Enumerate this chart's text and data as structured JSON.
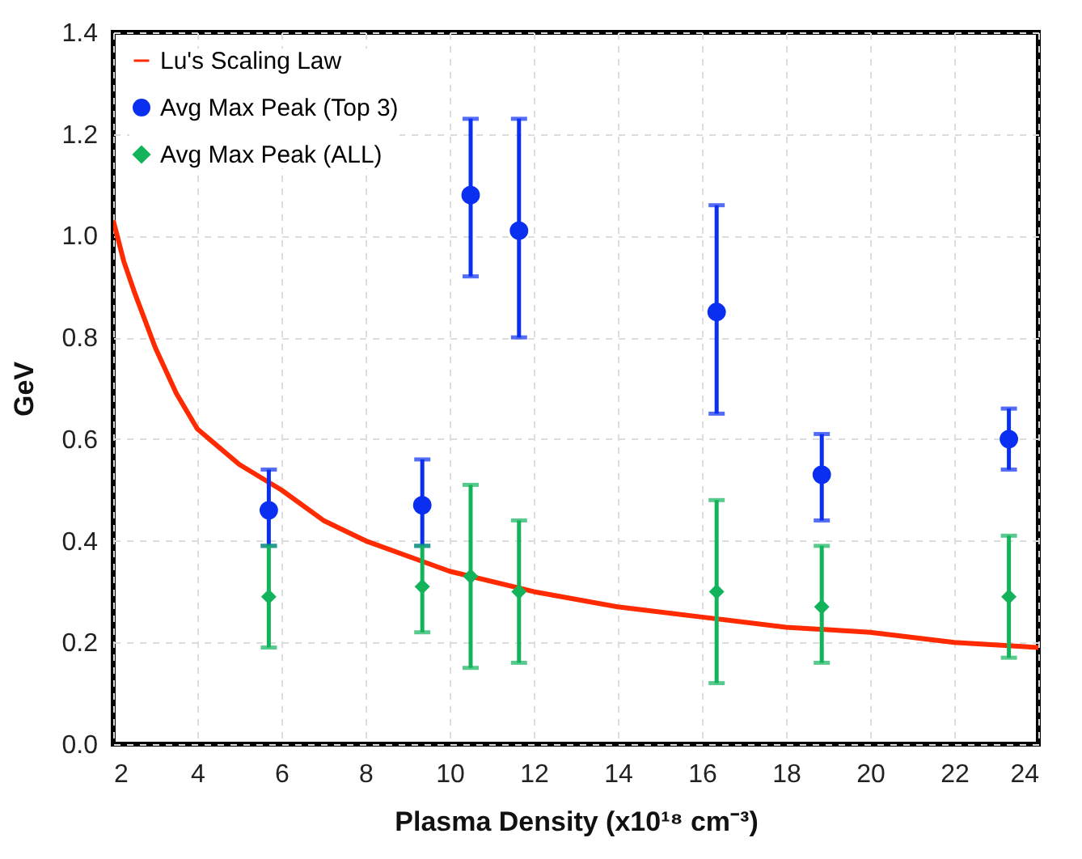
{
  "chart_data": {
    "type": "scatter",
    "xlabel": "Plasma Density (x10¹⁸ cm⁻³)",
    "ylabel": "GeV",
    "x": [
      5.7,
      9.35,
      10.5,
      11.65,
      16.35,
      18.85,
      23.3
    ],
    "series": [
      {
        "name": "Lu's Scaling Law",
        "type": "line",
        "color": "#ff2a00",
        "marker": "none",
        "line_style": "solid",
        "x": [
          2,
          2.25,
          2.5,
          3,
          3.5,
          4,
          5,
          6,
          7,
          8,
          10,
          12,
          14,
          16,
          18,
          20,
          22,
          24
        ],
        "values": [
          1.03,
          0.95,
          0.89,
          0.78,
          0.69,
          0.62,
          0.55,
          0.5,
          0.44,
          0.4,
          0.34,
          0.3,
          0.27,
          0.25,
          0.23,
          0.22,
          0.2,
          0.19
        ]
      },
      {
        "name": "Avg Max Peak (Top 3)",
        "color": "#0b2ff0",
        "marker": "circle",
        "values": [
          0.46,
          0.47,
          1.08,
          1.01,
          0.85,
          0.53,
          0.6
        ],
        "errors": [
          [
            0.39,
            0.54
          ],
          [
            0.39,
            0.56
          ],
          [
            0.92,
            1.23
          ],
          [
            0.8,
            1.23
          ],
          [
            0.65,
            1.06
          ],
          [
            0.44,
            0.61
          ],
          [
            0.54,
            0.66
          ]
        ]
      },
      {
        "name": "Avg Max Peak (ALL)",
        "color": "#13b35c",
        "marker": "diamond",
        "values": [
          0.29,
          0.31,
          0.33,
          0.3,
          0.3,
          0.27,
          0.29
        ],
        "errors": [
          [
            0.19,
            0.39
          ],
          [
            0.22,
            0.39
          ],
          [
            0.15,
            0.51
          ],
          [
            0.16,
            0.44
          ],
          [
            0.12,
            0.48
          ],
          [
            0.16,
            0.39
          ],
          [
            0.17,
            0.41
          ]
        ]
      }
    ],
    "xlim": [
      2,
      24
    ],
    "xticks": [
      2,
      4,
      6,
      8,
      10,
      12,
      14,
      16,
      18,
      20,
      22,
      24
    ],
    "ylim": [
      0,
      1.4
    ],
    "yticks": [
      {
        "value": 0,
        "label": "0.0"
      },
      {
        "value": 0.2,
        "label": "0.2"
      },
      {
        "value": 0.4,
        "label": "0.4"
      },
      {
        "value": 0.6,
        "label": "0.6"
      },
      {
        "value": 0.8,
        "label": "0.8"
      },
      {
        "value": 1,
        "label": "1.0"
      },
      {
        "value": 1.2,
        "label": "1.2"
      },
      {
        "value": 1.4,
        "label": "1.4"
      }
    ],
    "grid": true,
    "legend": "top left"
  }
}
